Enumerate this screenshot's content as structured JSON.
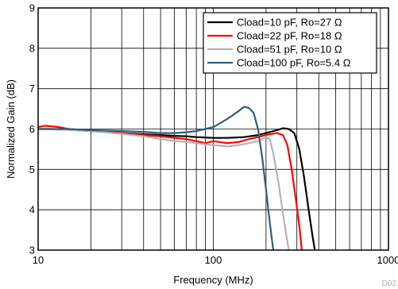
{
  "chart_data": {
    "type": "line",
    "xlabel": "Frequency (MHz)",
    "ylabel": "Normalized Gain (dB)",
    "x_scale": "log",
    "xlim": [
      10,
      1000
    ],
    "ylim": [
      3,
      9
    ],
    "x_ticks": [
      10,
      100,
      1000
    ],
    "x_tick_labels": [
      "10",
      "100",
      "1000"
    ],
    "y_ticks": [
      3,
      4,
      5,
      6,
      7,
      8,
      9
    ],
    "y_tick_labels": [
      "3",
      "4",
      "5",
      "6",
      "7",
      "8",
      "9"
    ],
    "grid": true,
    "legend_position": "top-right",
    "figure_id": "D02",
    "series": [
      {
        "name": "Cload=10 pF, Ro=27 Ω",
        "color": "#000000",
        "points": [
          [
            10,
            6.0
          ],
          [
            12,
            6.0
          ],
          [
            15,
            5.98
          ],
          [
            20,
            5.95
          ],
          [
            30,
            5.9
          ],
          [
            40,
            5.87
          ],
          [
            50,
            5.85
          ],
          [
            60,
            5.83
          ],
          [
            70,
            5.82
          ],
          [
            80,
            5.8
          ],
          [
            100,
            5.78
          ],
          [
            120,
            5.78
          ],
          [
            150,
            5.8
          ],
          [
            180,
            5.85
          ],
          [
            200,
            5.9
          ],
          [
            230,
            5.97
          ],
          [
            250,
            6.02
          ],
          [
            270,
            6.0
          ],
          [
            290,
            5.9
          ],
          [
            310,
            5.5
          ],
          [
            330,
            4.8
          ],
          [
            350,
            4.0
          ],
          [
            370,
            3.3
          ],
          [
            380,
            3.0
          ]
        ]
      },
      {
        "name": "Cload=22 pF, Ro=18 Ω",
        "color": "#ff0000",
        "points": [
          [
            10,
            6.05
          ],
          [
            11,
            6.08
          ],
          [
            13,
            6.05
          ],
          [
            15,
            6.0
          ],
          [
            20,
            5.95
          ],
          [
            30,
            5.9
          ],
          [
            40,
            5.85
          ],
          [
            50,
            5.82
          ],
          [
            60,
            5.78
          ],
          [
            70,
            5.75
          ],
          [
            80,
            5.7
          ],
          [
            90,
            5.65
          ],
          [
            100,
            5.7
          ],
          [
            120,
            5.65
          ],
          [
            140,
            5.68
          ],
          [
            160,
            5.75
          ],
          [
            180,
            5.8
          ],
          [
            200,
            5.85
          ],
          [
            230,
            5.9
          ],
          [
            250,
            5.85
          ],
          [
            265,
            5.6
          ],
          [
            280,
            5.0
          ],
          [
            295,
            4.3
          ],
          [
            310,
            3.6
          ],
          [
            320,
            3.0
          ]
        ]
      },
      {
        "name": "Cload=51 pF, Ro=10 Ω",
        "color": "#b4b4b4",
        "points": [
          [
            10,
            6.0
          ],
          [
            15,
            5.98
          ],
          [
            20,
            5.95
          ],
          [
            30,
            5.88
          ],
          [
            40,
            5.82
          ],
          [
            50,
            5.75
          ],
          [
            60,
            5.7
          ],
          [
            70,
            5.68
          ],
          [
            80,
            5.65
          ],
          [
            100,
            5.6
          ],
          [
            120,
            5.57
          ],
          [
            140,
            5.6
          ],
          [
            160,
            5.65
          ],
          [
            180,
            5.7
          ],
          [
            200,
            5.8
          ],
          [
            210,
            5.75
          ],
          [
            220,
            5.4
          ],
          [
            235,
            4.7
          ],
          [
            250,
            3.9
          ],
          [
            265,
            3.2
          ],
          [
            270,
            3.0
          ]
        ]
      },
      {
        "name": "Cload=100 pF, Ro=5.4 Ω",
        "color": "#2e5f7e",
        "points": [
          [
            10,
            6.0
          ],
          [
            15,
            6.0
          ],
          [
            20,
            5.97
          ],
          [
            30,
            5.95
          ],
          [
            40,
            5.93
          ],
          [
            50,
            5.9
          ],
          [
            60,
            5.9
          ],
          [
            70,
            5.92
          ],
          [
            80,
            5.95
          ],
          [
            90,
            6.0
          ],
          [
            100,
            6.05
          ],
          [
            110,
            6.15
          ],
          [
            120,
            6.25
          ],
          [
            130,
            6.35
          ],
          [
            140,
            6.45
          ],
          [
            150,
            6.55
          ],
          [
            160,
            6.52
          ],
          [
            170,
            6.4
          ],
          [
            180,
            6.0
          ],
          [
            190,
            5.3
          ],
          [
            200,
            4.5
          ],
          [
            210,
            3.7
          ],
          [
            220,
            3.0
          ]
        ]
      }
    ]
  }
}
